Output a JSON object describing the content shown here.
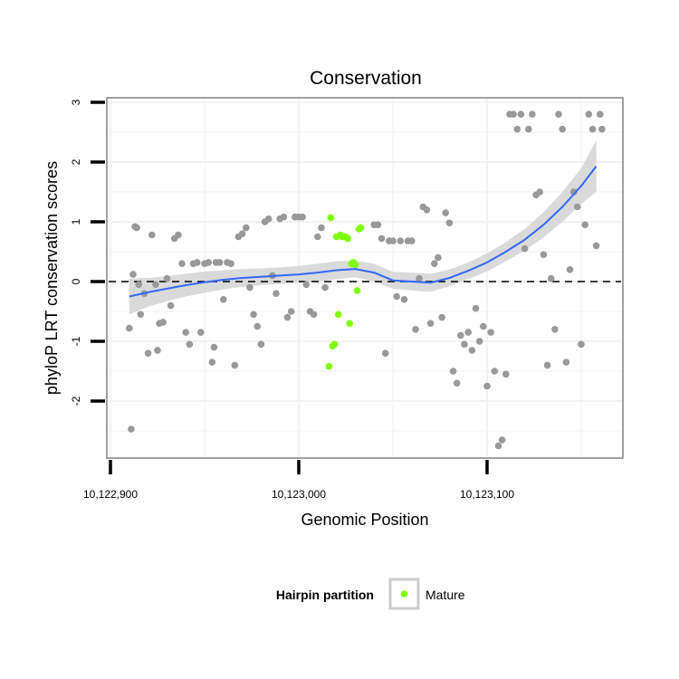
{
  "chart_data": {
    "type": "scatter",
    "title": "Conservation",
    "xlabel": "Genomic Position",
    "ylabel": "phyloP LRT conservation scores",
    "xlim": [
      10122900,
      10123180
    ],
    "ylim": [
      -3.0,
      3.0
    ],
    "x_ticks": [
      10122900,
      10123000,
      10123100
    ],
    "x_tick_labels": [
      "10,122,900",
      "10,123,000",
      "10,123,100"
    ],
    "y_ticks": [
      -2,
      -1,
      0,
      1,
      2,
      3
    ],
    "y_tick_labels": [
      "-2",
      "-1",
      "0",
      "1",
      "2",
      "3"
    ],
    "grid": true,
    "reference_line": {
      "y": 0,
      "style": "dashed"
    },
    "colors": {
      "background_point": "#999999",
      "mature": "#7fff00",
      "smooth_line": "#3366ff",
      "confidence_band": "#d3d3d3",
      "grid": "#f2f2f2",
      "panel_border": "#808080"
    },
    "series": [
      {
        "role": "background",
        "color": "#999999",
        "x": [
          10122910,
          10122911,
          10122912,
          10122913,
          10122914,
          10122915,
          10122916,
          10122918,
          10122920,
          10122922,
          10122924,
          10122925,
          10122926,
          10122928,
          10122930,
          10122932,
          10122934,
          10122936,
          10122938,
          10122940,
          10122942,
          10122944,
          10122946,
          10122948,
          10122950,
          10122952,
          10122954,
          10122955,
          10122956,
          10122958,
          10122960,
          10122962,
          10122964,
          10122966,
          10122968,
          10122970,
          10122972,
          10122974,
          10122976,
          10122978,
          10122980,
          10122982,
          10122984,
          10122986,
          10122988,
          10122990,
          10122992,
          10122994,
          10122996,
          10122998,
          10123000,
          10123002,
          10123004,
          10123006,
          10123008,
          10123010,
          10123012,
          10123014,
          10123040,
          10123042,
          10123044,
          10123046,
          10123048,
          10123050,
          10123052,
          10123054,
          10123056,
          10123058,
          10123060,
          10123062,
          10123064,
          10123066,
          10123068,
          10123070,
          10123072,
          10123074,
          10123076,
          10123078,
          10123080,
          10123082,
          10123084,
          10123086,
          10123088,
          10123090,
          10123092,
          10123094,
          10123096,
          10123098,
          10123100,
          10123102,
          10123104,
          10123106,
          10123108,
          10123110,
          10123112,
          10123114,
          10123116,
          10123118,
          10123120,
          10123122,
          10123124,
          10123126,
          10123128,
          10123130,
          10123132,
          10123134,
          10123136,
          10123138,
          10123140,
          10123142,
          10123144,
          10123146,
          10123148,
          10123150,
          10123152,
          10123154,
          10123156,
          10123158
        ],
        "y": [
          -0.78,
          -2.47,
          0.12,
          0.92,
          0.9,
          -0.05,
          -0.55,
          -0.2,
          -1.2,
          0.78,
          -0.05,
          -1.15,
          -0.7,
          -0.68,
          0.05,
          -0.4,
          0.72,
          0.78,
          0.3,
          -0.85,
          -1.05,
          0.3,
          0.32,
          -0.85,
          0.3,
          0.32,
          -1.35,
          -1.1,
          0.32,
          0.32,
          -0.3,
          0.32,
          0.3,
          -1.4,
          0.75,
          0.8,
          0.9,
          -0.1,
          -0.55,
          -0.75,
          -1.05,
          1.0,
          1.05,
          0.1,
          -0.2,
          1.05,
          1.08,
          -0.6,
          -0.5,
          1.08,
          1.08,
          1.08,
          -0.05,
          -0.5,
          -0.55,
          0.75,
          0.9,
          -0.1,
          0.95,
          0.95,
          0.72,
          -1.2,
          0.68,
          0.68,
          -0.25,
          0.68,
          -0.3,
          0.68,
          0.68,
          -0.8,
          0.05,
          1.25,
          1.2,
          -0.7,
          0.3,
          0.4,
          -0.6,
          1.15,
          0.98,
          -1.5,
          -1.7,
          -0.9,
          -1.05,
          -0.85,
          -1.15,
          -0.45,
          -1.0,
          -0.75,
          -1.75,
          -0.85,
          -1.5,
          -2.75,
          -2.65,
          -1.55,
          2.8,
          2.8,
          2.55,
          2.8,
          0.55,
          2.55,
          2.8,
          1.45,
          1.5,
          0.45,
          -1.4,
          0.05,
          -0.8,
          2.8,
          2.55,
          -1.35,
          0.2,
          1.5,
          1.25,
          -1.05,
          0.95,
          2.8,
          2.55,
          0.6
        ],
        "x_extra": [
          10123160,
          10123161
        ],
        "y_extra": [
          2.8,
          2.55
        ]
      },
      {
        "name": "Mature",
        "color": "#7fff00",
        "x": [
          10123016,
          10123017,
          10123018,
          10123019,
          10123020,
          10123021,
          10123022,
          10123023,
          10123024,
          10123025,
          10123026,
          10123027,
          10123028,
          10123029,
          10123030,
          10123031,
          10123032,
          10123033
        ],
        "y": [
          -1.42,
          1.07,
          -1.08,
          -1.05,
          0.75,
          -0.55,
          0.78,
          0.75,
          0.75,
          0.75,
          0.72,
          -0.7,
          0.3,
          0.32,
          0.28,
          -0.15,
          0.88,
          0.9
        ]
      }
    ],
    "smooth": {
      "x": [
        10122910,
        10122920,
        10122930,
        10122940,
        10122950,
        10122960,
        10122970,
        10122980,
        10122990,
        10123000,
        10123010,
        10123020,
        10123030,
        10123040,
        10123050,
        10123060,
        10123070,
        10123080,
        10123090,
        10123100,
        10123110,
        10123120,
        10123130,
        10123140,
        10123150,
        10123158
      ],
      "y": [
        -0.25,
        -0.18,
        -0.12,
        -0.06,
        -0.01,
        0.03,
        0.06,
        0.08,
        0.1,
        0.12,
        0.15,
        0.19,
        0.21,
        0.15,
        0.02,
        0.0,
        -0.02,
        0.06,
        0.18,
        0.32,
        0.5,
        0.7,
        0.95,
        1.25,
        1.6,
        1.93
      ],
      "ci_lower": [
        -0.55,
        -0.42,
        -0.33,
        -0.25,
        -0.19,
        -0.13,
        -0.09,
        -0.06,
        -0.04,
        -0.02,
        0.0,
        0.04,
        0.07,
        0.0,
        -0.12,
        -0.15,
        -0.17,
        -0.08,
        0.04,
        0.17,
        0.34,
        0.52,
        0.74,
        1.0,
        1.3,
        1.5
      ],
      "ci_upper": [
        0.05,
        0.06,
        0.09,
        0.13,
        0.17,
        0.19,
        0.21,
        0.22,
        0.24,
        0.26,
        0.3,
        0.34,
        0.35,
        0.3,
        0.16,
        0.15,
        0.13,
        0.2,
        0.32,
        0.47,
        0.66,
        0.88,
        1.16,
        1.5,
        1.9,
        2.36
      ]
    },
    "legend": {
      "title": "Hairpin partition",
      "entries": [
        {
          "label": "Mature",
          "color": "#7fff00"
        }
      ],
      "position": "bottom"
    }
  }
}
